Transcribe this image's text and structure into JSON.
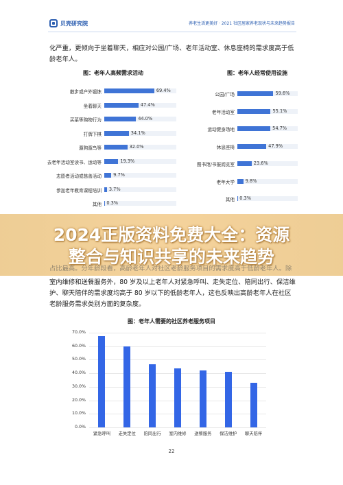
{
  "header": {
    "logo_text": "贝壳研究院",
    "report_title": "养老生活更美好 · 2021 社区居家养老现状与未来趋势报告"
  },
  "top_paragraph": {
    "line1": "化严重，更倾向于坐着聊天，相应对公园/广场、老年活动室、休息座椅的需求度高于低",
    "line2": "龄老年人。"
  },
  "chart_left": {
    "title": "图：老年人高频需求活动",
    "chart_data": {
      "type": "bar",
      "orientation": "horizontal",
      "title": "图：老年人高频需求活动",
      "categories": [
        "散步或户外锻炼",
        "坐着聊天",
        "买菜等购物行为",
        "打牌下棋",
        "遛狗遛鸟等",
        "去老年活动室读书、运动等",
        "志愿者活动或慈善活动",
        "参加老年教育课程培训",
        "其他"
      ],
      "values": [
        69.4,
        47.4,
        44.0,
        34.1,
        32.0,
        19.3,
        9.7,
        3.7,
        0.3
      ],
      "value_labels": [
        "69.4%",
        "47.4%",
        "44.0%",
        "34.1%",
        "32.0%",
        "19.3%",
        "9.7%",
        "3.7%",
        "0.3%"
      ],
      "xlim": [
        0,
        100
      ]
    }
  },
  "chart_right": {
    "title": "图：老年人经常使用设施",
    "chart_data": {
      "type": "bar",
      "orientation": "horizontal",
      "title": "图：老年人经常使用设施",
      "categories": [
        "公园/广场",
        "老年活动室",
        "运动健身场地",
        "休息座椅",
        "图书馆/书报阅览室",
        "老年大学",
        "其他"
      ],
      "values": [
        59.6,
        55.1,
        54.7,
        47.9,
        23.6,
        9.8,
        0.3
      ],
      "value_labels": [
        "59.6%",
        "55.1%",
        "54.7%",
        "47.9%",
        "23.6%",
        "9.8%",
        "0.3%"
      ],
      "xlim": [
        0,
        100
      ]
    }
  },
  "banner": {
    "line1": "2024正版资料免费大全：资源",
    "line2": "整合与知识共享的未来趋势"
  },
  "middle_paragraph": {
    "line0": "占比最高。分年龄段看，高龄老年人对社区老龄服务项目的需求度高于低龄老年人。除",
    "line1": "室内维修和送餐服务外，80 岁及以上老年人对紧急呼叫、走失定位、陪同出行、保洁维",
    "line2": "护、聊天陪伴的需求度均高于 80 岁以下的低龄老年人，这也反映出高龄老年人在社区",
    "line3": "老龄服务需求类别方面的复杂度。"
  },
  "chart_bottom": {
    "title": "图：老年人需要的社区养老服务项目",
    "chart_data": {
      "type": "bar",
      "title": "图：老年人需要的社区养老服务项目",
      "categories": [
        "紧急呼叫",
        "走失定位",
        "陪同出行",
        "室内维修",
        "送餐服务",
        "保洁维护",
        "聊天陪伴"
      ],
      "values": [
        67.5,
        60.0,
        46.5,
        43.5,
        42.0,
        41.0,
        33.0
      ],
      "yticks": [
        "0.0%",
        "10.0%",
        "20.0%",
        "30.0%",
        "40.0%",
        "50.0%",
        "60.0%",
        "70.0%"
      ],
      "ylim": [
        0,
        70
      ],
      "grid": true
    }
  },
  "page_number": "22"
}
